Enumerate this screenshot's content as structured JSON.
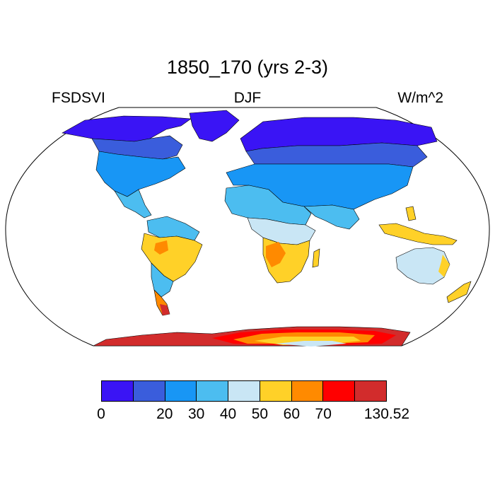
{
  "title": "1850_170 (yrs 2-3)",
  "variable": "FSDSVI",
  "season": "DJF",
  "units": "W/m^2",
  "colorbar": {
    "colors": [
      "#3a14f5",
      "#3a5ddc",
      "#1896f5",
      "#4cbdf0",
      "#c9e6f5",
      "#ffd128",
      "#ff8a00",
      "#ff0000",
      "#d22c2c"
    ],
    "tick_labels": [
      "0",
      "20",
      "30",
      "40",
      "50",
      "60",
      "70",
      "130.52"
    ]
  },
  "colors": {
    "land_outline": "#000000",
    "ocean": "#ffffff"
  }
}
